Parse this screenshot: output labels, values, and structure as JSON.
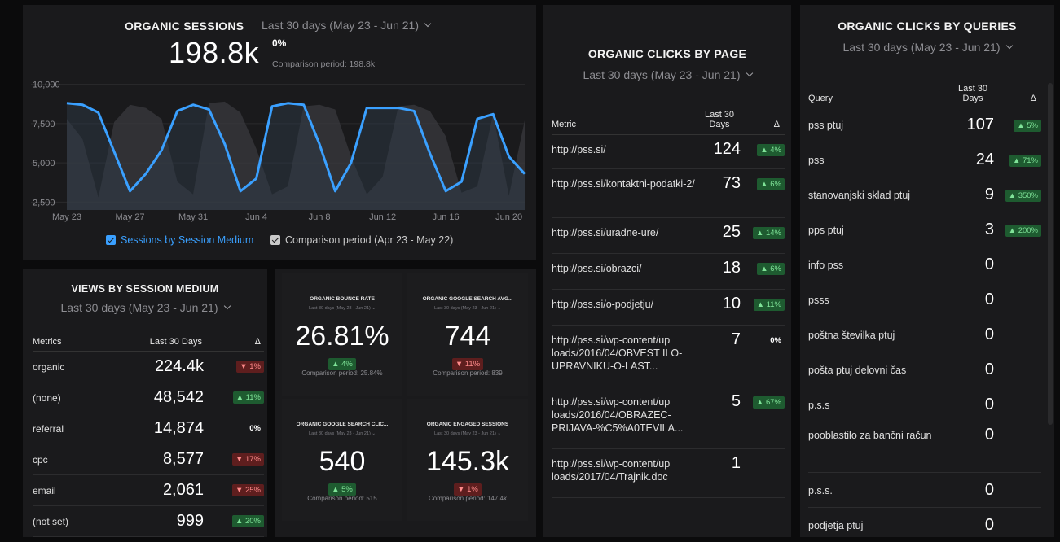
{
  "colors": {
    "accent": "#3aa0ff",
    "comparison": "#c9c9c9",
    "positive": "#7fe398",
    "negative": "#ff8a8a"
  },
  "sessions": {
    "title": "ORGANIC SESSIONS",
    "period": "Last 30 days (May 23 - Jun 21)",
    "value": "198.8k",
    "delta": "0%",
    "comparison": "Comparison period: 198.8k",
    "legend_current": "Sessions by Session Medium",
    "legend_comparison": "Comparison period (Apr 23 - May 22)"
  },
  "chart_data": {
    "type": "line",
    "x": [
      "May 23",
      "May 24",
      "May 25",
      "May 26",
      "May 27",
      "May 28",
      "May 29",
      "May 30",
      "May 31",
      "Jun 1",
      "Jun 2",
      "Jun 3",
      "Jun 4",
      "Jun 5",
      "Jun 6",
      "Jun 7",
      "Jun 8",
      "Jun 9",
      "Jun 10",
      "Jun 11",
      "Jun 12",
      "Jun 13",
      "Jun 14",
      "Jun 15",
      "Jun 16",
      "Jun 17",
      "Jun 18",
      "Jun 19",
      "Jun 20",
      "Jun 21"
    ],
    "tick_labels": [
      "May 23",
      "May 27",
      "May 31",
      "Jun 4",
      "Jun 8",
      "Jun 12",
      "Jun 16",
      "Jun 20"
    ],
    "y_ticks": [
      "10,000",
      "7,500",
      "5,000",
      "2,500"
    ],
    "ylim": [
      2000,
      10500
    ],
    "series": [
      {
        "name": "Sessions by Session Medium",
        "values": [
          8800,
          8700,
          8200,
          5700,
          3200,
          4300,
          5800,
          8300,
          8700,
          8400,
          6200,
          3200,
          4000,
          8600,
          8800,
          8700,
          6200,
          3200,
          5000,
          8500,
          8500,
          8500,
          8300,
          5600,
          3200,
          3800,
          7800,
          8100,
          5400,
          4300
        ]
      },
      {
        "name": "Comparison period (Apr 23 - May 22)",
        "values": [
          7800,
          6500,
          2800,
          7600,
          8700,
          8500,
          7800,
          3800,
          3000,
          8800,
          8900,
          8200,
          5900,
          3000,
          3500,
          8600,
          8700,
          8400,
          5400,
          3000,
          4100,
          8600,
          8700,
          8300,
          6700,
          3100,
          3500,
          8100,
          2900,
          7700
        ]
      }
    ]
  },
  "views": {
    "title": "VIEWS BY SESSION MEDIUM",
    "period": "Last 30 days (May 23 - Jun 21)",
    "headers": [
      "Metrics",
      "Last 30 Days",
      "Δ"
    ],
    "rows": [
      {
        "name": "organic",
        "value": "224.4k",
        "delta": "▼ 1%",
        "dir": "down"
      },
      {
        "name": "(none)",
        "value": "48,542",
        "delta": "▲ 11%",
        "dir": "up"
      },
      {
        "name": "referral",
        "value": "14,874",
        "delta": "0%",
        "dir": "zero"
      },
      {
        "name": "cpc",
        "value": "8,577",
        "delta": "▼ 17%",
        "dir": "down"
      },
      {
        "name": "email",
        "value": "2,061",
        "delta": "▼ 25%",
        "dir": "down"
      },
      {
        "name": "(not set)",
        "value": "999",
        "delta": "▲ 20%",
        "dir": "up"
      }
    ]
  },
  "kpis": [
    {
      "title": "ORGANIC BOUNCE RATE",
      "period": "Last 30 days (May 23 - Jun 21)",
      "value": "26.81%",
      "delta": "▲ 4%",
      "dir": "up",
      "comparison": "Comparison period: 25.84%"
    },
    {
      "title": "ORGANIC GOOGLE SEARCH AVG...",
      "period": "Last 30 days (May 23 - Jun 21)",
      "value": "744",
      "delta": "▼ 11%",
      "dir": "down",
      "comparison": "Comparison period: 839"
    },
    {
      "title": "ORGANIC GOOGLE SEARCH CLIC...",
      "period": "Last 30 days (May 23 - Jun 21)",
      "value": "540",
      "delta": "▲ 5%",
      "dir": "up",
      "comparison": "Comparison period: 515"
    },
    {
      "title": "ORGANIC ENGAGED SESSIONS",
      "period": "Last 30 days (May 23 - Jun 21)",
      "value": "145.3k",
      "delta": "▼ 1%",
      "dir": "down",
      "comparison": "Comparison period: 147.4k"
    }
  ],
  "pages": {
    "title": "ORGANIC CLICKS BY PAGE",
    "period": "Last 30 days (May 23 - Jun 21)",
    "headers": [
      "Metric",
      "Last 30 Days",
      "Δ"
    ],
    "rows": [
      {
        "name": "http://pss.si/",
        "value": "124",
        "delta": "▲ 4%",
        "dir": "up",
        "h": 42
      },
      {
        "name": "http://pss.si/kontaktni-podatki-2/",
        "value": "73",
        "delta": "▲ 6%",
        "dir": "up",
        "h": 60
      },
      {
        "name": "http://pss.si/uradne-ure/",
        "value": "25",
        "delta": "▲ 14%",
        "dir": "up",
        "h": 44
      },
      {
        "name": "http://pss.si/obrazci/",
        "value": "18",
        "delta": "▲ 6%",
        "dir": "up",
        "h": 44
      },
      {
        "name": "http://pss.si/o-podjetju/",
        "value": "10",
        "delta": "▲ 11%",
        "dir": "up",
        "h": 44
      },
      {
        "name": "http://pss.si/wp-content/up loads/2016/04/OBVEST ILO-UPRAVNIKU-O-LAST...",
        "value": "7",
        "delta": "0%",
        "dir": "zero",
        "h": 76
      },
      {
        "name": "http://pss.si/wp-content/up loads/2016/04/OBRAZEC-PRIJAVA-%C5%A0TEVILA...",
        "value": "5",
        "delta": "▲ 67%",
        "dir": "up",
        "h": 76
      },
      {
        "name": "http://pss.si/wp-content/up loads/2017/04/Trajnik.doc",
        "value": "1",
        "delta": "",
        "dir": "none",
        "h": 60
      }
    ]
  },
  "queries": {
    "title": "ORGANIC CLICKS BY QUERIES",
    "period": "Last 30 days (May 23 - Jun 21)",
    "headers": [
      "Query",
      "Last 30 Days",
      "Δ"
    ],
    "rows": [
      {
        "name": "pss ptuj",
        "value": "107",
        "delta": "▲ 5%",
        "dir": "up",
        "h": 43
      },
      {
        "name": "pss",
        "value": "24",
        "delta": "▲ 71%",
        "dir": "up",
        "h": 43
      },
      {
        "name": "stanovanjski sklad ptuj",
        "value": "9",
        "delta": "▲ 350%",
        "dir": "up",
        "h": 43
      },
      {
        "name": "pps ptuj",
        "value": "3",
        "delta": "▲ 200%",
        "dir": "up",
        "h": 43
      },
      {
        "name": "info pss",
        "value": "0",
        "delta": "",
        "dir": "none",
        "h": 43
      },
      {
        "name": "psss",
        "value": "0",
        "delta": "",
        "dir": "none",
        "h": 43
      },
      {
        "name": "poštna številka ptuj",
        "value": "0",
        "delta": "",
        "dir": "none",
        "h": 43
      },
      {
        "name": "pošta ptuj delovni čas",
        "value": "0",
        "delta": "",
        "dir": "none",
        "h": 43
      },
      {
        "name": "p.s.s",
        "value": "0",
        "delta": "",
        "dir": "none",
        "h": 43
      },
      {
        "name": "pooblastilo za bančni račun",
        "value": "0",
        "delta": "",
        "dir": "none",
        "h": 62
      },
      {
        "name": "p.s.s.",
        "value": "0",
        "delta": "",
        "dir": "none",
        "h": 43
      },
      {
        "name": "podjetja ptuj",
        "value": "0",
        "delta": "",
        "dir": "none",
        "h": 43
      }
    ]
  }
}
